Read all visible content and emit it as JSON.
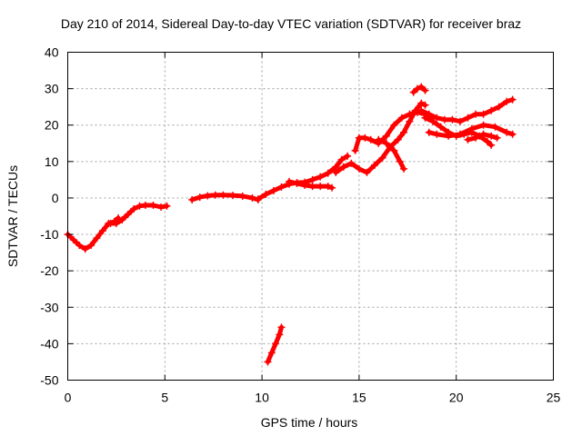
{
  "chart_data": {
    "type": "scatter",
    "title": "Day 210 of 2014, Sidereal Day-to-day VTEC variation (SDTVAR) for receiver braz",
    "xlabel": "GPS time / hours",
    "ylabel": "SDTVAR / TECUs",
    "xlim": [
      0,
      25
    ],
    "ylim": [
      -50,
      40
    ],
    "xticks": [
      0,
      5,
      10,
      15,
      20,
      25
    ],
    "yticks": [
      -50,
      -40,
      -30,
      -20,
      -10,
      0,
      10,
      20,
      30,
      40
    ],
    "grid": true,
    "series": [
      {
        "name": "SDTVAR",
        "color": "#ff0000",
        "segments": [
          [
            [
              0,
              -10
            ],
            [
              0.3,
              -11.5
            ],
            [
              0.6,
              -13
            ],
            [
              0.9,
              -14
            ],
            [
              1.2,
              -13
            ],
            [
              1.5,
              -11
            ],
            [
              1.8,
              -9
            ],
            [
              2.1,
              -7
            ],
            [
              2.4,
              -6.5
            ],
            [
              2.6,
              -5.5
            ]
          ],
          [
            [
              2.2,
              -7
            ],
            [
              2.5,
              -7
            ],
            [
              2.8,
              -6
            ],
            [
              3.1,
              -4.5
            ],
            [
              3.4,
              -3
            ],
            [
              3.7,
              -2.2
            ],
            [
              4.0,
              -2
            ],
            [
              4.4,
              -2
            ],
            [
              4.8,
              -2.5
            ],
            [
              5.1,
              -2.2
            ]
          ],
          [
            [
              6.4,
              -0.5
            ],
            [
              6.8,
              0.2
            ],
            [
              7.2,
              0.6
            ],
            [
              7.6,
              0.8
            ],
            [
              8.0,
              0.8
            ],
            [
              8.5,
              0.7
            ],
            [
              9.0,
              0.5
            ],
            [
              9.5,
              0
            ],
            [
              9.8,
              -0.5
            ]
          ],
          [
            [
              9.8,
              -0.3
            ],
            [
              10.2,
              1
            ],
            [
              10.6,
              2
            ],
            [
              11.0,
              3
            ],
            [
              11.4,
              3.8
            ],
            [
              11.8,
              4.2
            ],
            [
              12.2,
              4.3
            ],
            [
              12.6,
              5
            ],
            [
              13.0,
              5.8
            ],
            [
              13.4,
              6.8
            ],
            [
              13.8,
              8.5
            ],
            [
              14.1,
              10.5
            ],
            [
              14.4,
              11.5
            ]
          ],
          [
            [
              11.4,
              4.5
            ],
            [
              11.8,
              4
            ],
            [
              12.2,
              3.5
            ],
            [
              12.6,
              3.2
            ],
            [
              13.0,
              3.2
            ],
            [
              13.4,
              3.2
            ],
            [
              13.6,
              2.8
            ]
          ],
          [
            [
              13.8,
              7
            ],
            [
              14.2,
              8.5
            ],
            [
              14.6,
              9.5
            ],
            [
              15.0,
              8
            ],
            [
              15.4,
              7
            ],
            [
              15.8,
              9
            ],
            [
              16.2,
              11
            ],
            [
              16.6,
              14
            ],
            [
              17.0,
              16
            ],
            [
              17.3,
              18
            ],
            [
              17.6,
              21
            ],
            [
              17.9,
              24
            ],
            [
              18.2,
              26
            ],
            [
              18.4,
              25.5
            ]
          ],
          [
            [
              14.8,
              13
            ],
            [
              15.0,
              16.5
            ],
            [
              15.3,
              16.5
            ],
            [
              15.6,
              16
            ],
            [
              16.0,
              15
            ],
            [
              16.4,
              17
            ],
            [
              16.8,
              20
            ],
            [
              17.2,
              22
            ],
            [
              17.6,
              23
            ],
            [
              18.0,
              23.5
            ],
            [
              18.4,
              23
            ],
            [
              18.8,
              22
            ]
          ],
          [
            [
              16.0,
              16
            ],
            [
              16.4,
              15
            ],
            [
              16.8,
              13
            ],
            [
              17.1,
              10
            ],
            [
              17.3,
              8
            ]
          ],
          [
            [
              17.8,
              29
            ],
            [
              18.0,
              30
            ],
            [
              18.2,
              30.5
            ],
            [
              18.4,
              29.5
            ]
          ],
          [
            [
              18.2,
              24
            ],
            [
              18.6,
              23
            ],
            [
              19.0,
              22
            ],
            [
              19.4,
              21.5
            ],
            [
              19.8,
              21.5
            ],
            [
              20.2,
              21
            ],
            [
              20.6,
              22
            ],
            [
              21.0,
              23
            ],
            [
              21.4,
              23
            ],
            [
              21.8,
              24
            ],
            [
              22.2,
              25
            ],
            [
              22.6,
              26.5
            ],
            [
              22.9,
              27
            ]
          ],
          [
            [
              18.4,
              22
            ],
            [
              18.8,
              21
            ],
            [
              19.2,
              19.5
            ],
            [
              19.6,
              18
            ],
            [
              20.0,
              17
            ],
            [
              20.4,
              17.5
            ],
            [
              20.8,
              18
            ],
            [
              21.2,
              17
            ],
            [
              21.6,
              15.5
            ],
            [
              21.8,
              14.5
            ]
          ],
          [
            [
              18.6,
              18
            ],
            [
              19.0,
              17.5
            ],
            [
              19.6,
              17
            ],
            [
              20.2,
              17.5
            ],
            [
              20.8,
              19
            ],
            [
              21.4,
              20
            ],
            [
              22.0,
              19.5
            ],
            [
              22.6,
              18
            ],
            [
              22.9,
              17.5
            ]
          ],
          [
            [
              20.6,
              16
            ],
            [
              21.0,
              16.5
            ],
            [
              21.4,
              17.5
            ],
            [
              21.8,
              17
            ],
            [
              22.1,
              16.5
            ]
          ],
          [
            [
              10.3,
              -45
            ],
            [
              10.5,
              -42.5
            ],
            [
              10.7,
              -40
            ],
            [
              10.9,
              -37.5
            ],
            [
              11.0,
              -35.5
            ]
          ]
        ]
      }
    ]
  }
}
